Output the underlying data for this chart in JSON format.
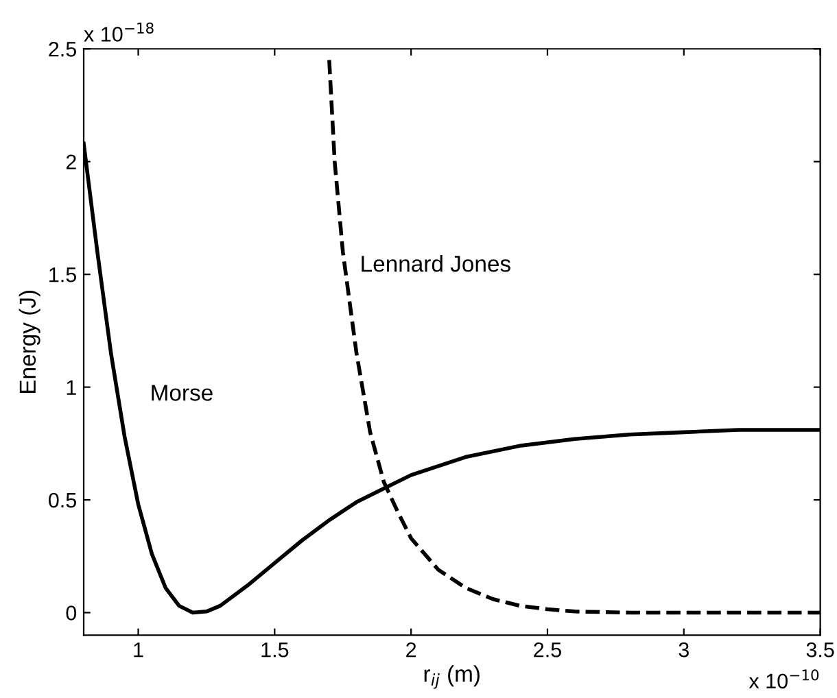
{
  "chart_data": {
    "type": "line",
    "xlabel": "r$_{ij}$ (m)",
    "ylabel": "Energy (J)",
    "annotations": [
      "x 10$^{−18}$",
      "x 10$^{−10}$"
    ],
    "xlim": [
      0.8,
      3.5
    ],
    "xticks": [
      1,
      1.5,
      2,
      2.5,
      3,
      3.5
    ],
    "ylim": [
      -0.1,
      2.5
    ],
    "yticks": [
      0,
      0.5,
      1,
      1.5,
      2,
      2.5
    ],
    "grid": false,
    "legend": false,
    "series": [
      {
        "name": "Morse",
        "color": "#000000",
        "line_style": "solid",
        "x": [
          0.8,
          0.85,
          0.9,
          0.95,
          1.0,
          1.05,
          1.1,
          1.15,
          1.2,
          1.25,
          1.3,
          1.4,
          1.5,
          1.6,
          1.7,
          1.8,
          1.9,
          2.0,
          2.2,
          2.4,
          2.6,
          2.8,
          3.0,
          3.2,
          3.5
        ],
        "values": [
          2.08,
          1.6,
          1.15,
          0.78,
          0.48,
          0.26,
          0.11,
          0.03,
          0.0,
          0.005,
          0.03,
          0.12,
          0.22,
          0.32,
          0.41,
          0.49,
          0.55,
          0.61,
          0.69,
          0.74,
          0.77,
          0.79,
          0.8,
          0.81,
          0.81
        ]
      },
      {
        "name": "Lennard Jones",
        "color": "#000000",
        "line_style": "dashed",
        "x": [
          1.7,
          1.72,
          1.75,
          1.8,
          1.85,
          1.9,
          1.95,
          2.0,
          2.1,
          2.2,
          2.3,
          2.4,
          2.5,
          2.6,
          2.8,
          3.0,
          3.5
        ],
        "values": [
          2.45,
          2.0,
          1.6,
          1.15,
          0.8,
          0.58,
          0.45,
          0.33,
          0.19,
          0.11,
          0.06,
          0.03,
          0.015,
          0.005,
          0.0,
          0.0,
          0.0
        ]
      }
    ]
  }
}
